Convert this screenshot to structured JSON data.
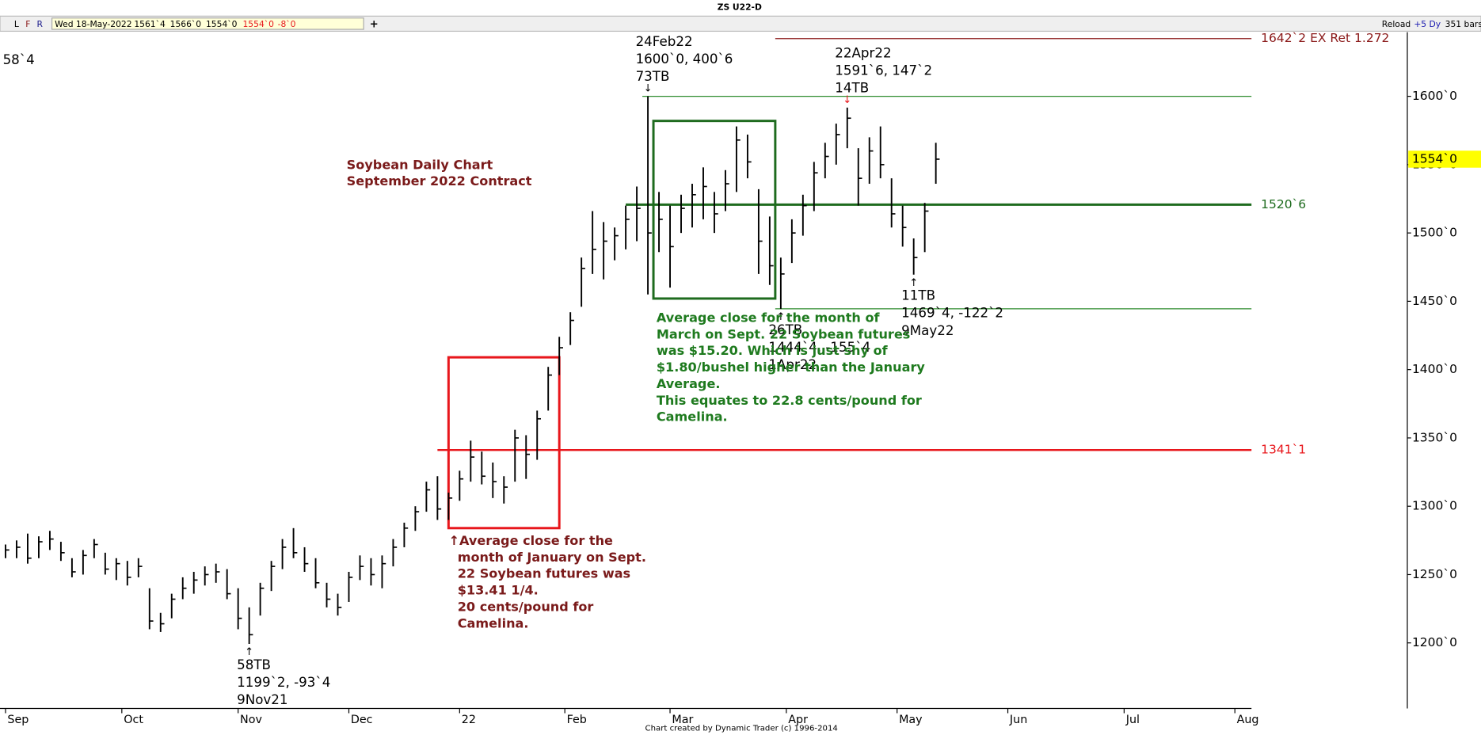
{
  "toolbar": {
    "buttons": [
      "L",
      "F",
      "R"
    ],
    "date": "Wed 18-May-2022",
    "open": "1561`4",
    "high": "1566`0",
    "low": "1554`0",
    "last": "1554`0",
    "change": "-8`0",
    "add": "+",
    "title": "ZS U22-D",
    "reload": "Reload",
    "period": "+5 Dy",
    "bars": "351 bars"
  },
  "corner_label": "58`4",
  "footer": "Chart created by Dynamic Trader  (c) 1996-2014",
  "chart_data": {
    "type": "ohlc",
    "bar_color": "#000000",
    "x": [
      0,
      2,
      4,
      6,
      8,
      10,
      12,
      14,
      16,
      18,
      20,
      22,
      24,
      26,
      28,
      30,
      32,
      34,
      36,
      38,
      40,
      42,
      44,
      46,
      48,
      50,
      52,
      54,
      56,
      58,
      60,
      62,
      64,
      66,
      68,
      70,
      72,
      74,
      76,
      78,
      80,
      82,
      84,
      86,
      88,
      90,
      92,
      94,
      96,
      98,
      100,
      102,
      104,
      106,
      108,
      110,
      112,
      114,
      116,
      118,
      120,
      122,
      124,
      126,
      128,
      130,
      132,
      134,
      136,
      138,
      140,
      142,
      144,
      146,
      148,
      150,
      152,
      154,
      156,
      158,
      160,
      162,
      164,
      166,
      168
    ],
    "high": [
      1272,
      1275,
      1280,
      1278,
      1282,
      1274,
      1262,
      1268,
      1276,
      1266,
      1262,
      1260,
      1262,
      1240,
      1222,
      1236,
      1248,
      1252,
      1256,
      1258,
      1254,
      1240,
      1226,
      1244,
      1260,
      1276,
      1284,
      1270,
      1262,
      1244,
      1236,
      1252,
      1264,
      1262,
      1264,
      1276,
      1288,
      1300,
      1318,
      1322,
      1310,
      1326,
      1348,
      1340,
      1332,
      1322,
      1356,
      1352,
      1370,
      1402,
      1424,
      1442,
      1482,
      1516,
      1508,
      1504,
      1520,
      1534,
      1600,
      1530,
      1520,
      1528,
      1536,
      1548,
      1530,
      1546,
      1578,
      1572,
      1532,
      1512,
      1482,
      1510,
      1528,
      1552,
      1566,
      1580,
      1591.75,
      1562,
      1570,
      1578,
      1540,
      1520,
      1496,
      1522,
      1566
    ],
    "low": [
      1262,
      1262,
      1258,
      1262,
      1268,
      1260,
      1248,
      1250,
      1262,
      1250,
      1246,
      1242,
      1248,
      1210,
      1208,
      1218,
      1232,
      1236,
      1242,
      1244,
      1232,
      1210,
      1199.25,
      1220,
      1238,
      1254,
      1262,
      1252,
      1240,
      1226,
      1220,
      1230,
      1246,
      1242,
      1240,
      1256,
      1270,
      1282,
      1296,
      1290,
      1290,
      1304,
      1318,
      1316,
      1306,
      1302,
      1318,
      1320,
      1334,
      1370,
      1396,
      1418,
      1446,
      1470,
      1466,
      1480,
      1488,
      1494,
      1455,
      1486,
      1460,
      1500,
      1504,
      1510,
      1500,
      1516,
      1530,
      1540,
      1470,
      1462,
      1444.5,
      1478,
      1498,
      1516,
      1540,
      1550,
      1562,
      1520,
      1536,
      1540,
      1504,
      1490,
      1469.5,
      1486,
      1536
    ],
    "close": [
      1268,
      1270,
      1262,
      1274,
      1276,
      1266,
      1252,
      1264,
      1272,
      1254,
      1258,
      1248,
      1256,
      1216,
      1214,
      1232,
      1240,
      1246,
      1250,
      1252,
      1236,
      1218,
      1206,
      1240,
      1256,
      1270,
      1266,
      1258,
      1244,
      1232,
      1226,
      1248,
      1256,
      1250,
      1258,
      1270,
      1284,
      1296,
      1312,
      1298,
      1306,
      1320,
      1336,
      1322,
      1318,
      1314,
      1350,
      1338,
      1364,
      1396,
      1416,
      1436,
      1474,
      1488,
      1494,
      1498,
      1510,
      1518,
      1500,
      1510,
      1490,
      1518,
      1528,
      1534,
      1514,
      1536,
      1568,
      1552,
      1494,
      1476,
      1470,
      1500,
      1520,
      1544,
      1556,
      1572,
      1584,
      1540,
      1560,
      1550,
      1514,
      1504,
      1482,
      1516,
      1554
    ],
    "xlim": [
      -1,
      225
    ],
    "xticks": [
      {
        "value": 0,
        "label": "Sep"
      },
      {
        "value": 21,
        "label": "Oct"
      },
      {
        "value": 42,
        "label": "Nov"
      },
      {
        "value": 62,
        "label": "Dec"
      },
      {
        "value": 82,
        "label": "22"
      },
      {
        "value": 101,
        "label": "Feb"
      },
      {
        "value": 120,
        "label": "Mar"
      },
      {
        "value": 141,
        "label": "Apr"
      },
      {
        "value": 161,
        "label": "May"
      },
      {
        "value": 181,
        "label": "Jun"
      },
      {
        "value": 202,
        "label": "Jul"
      },
      {
        "value": 222,
        "label": "Aug"
      }
    ],
    "ylim": [
      1152,
      1658
    ],
    "yticks": [
      {
        "value": 1200,
        "label": "1200`0"
      },
      {
        "value": 1250,
        "label": "1250`0"
      },
      {
        "value": 1300,
        "label": "1300`0"
      },
      {
        "value": 1350,
        "label": "1350`0"
      },
      {
        "value": 1400,
        "label": "1400`0"
      },
      {
        "value": 1450,
        "label": "1450`0"
      },
      {
        "value": 1500,
        "label": "1500`0"
      },
      {
        "value": 1550,
        "label": "1550`0"
      },
      {
        "value": 1600,
        "label": "1600`0"
      }
    ],
    "last_price": {
      "value": 1554,
      "label": "1554`0"
    },
    "levels": [
      {
        "value": 1642.25,
        "label": "1642`2 EX Ret 1.272",
        "color": "#8b1a1a",
        "from": 139,
        "width": 1
      },
      {
        "value": 1600,
        "label": null,
        "color": "#2e8b2e",
        "from": 115,
        "width": 1
      },
      {
        "value": 1520.75,
        "label": "1520`6",
        "color": "#1e6b1e",
        "from": 112,
        "width": 2.5
      },
      {
        "value": 1444.5,
        "label": null,
        "color": "#2e8b2e",
        "from": 139,
        "width": 1
      },
      {
        "value": 1341.125,
        "label": "1341`1",
        "color": "#e8161b",
        "from": 78,
        "width": 2
      }
    ],
    "boxes": [
      {
        "x": [
          80,
          100
        ],
        "y": [
          1284,
          1409
        ],
        "color": "#e8161b"
      },
      {
        "x": [
          117,
          139
        ],
        "y": [
          1452,
          1582
        ],
        "color": "#1e6b1e"
      }
    ],
    "pivots": [
      {
        "x": 116,
        "value": 1600,
        "position": "above",
        "arrow": "↓",
        "arrow_color": "#000000",
        "lines": [
          "24Feb22",
          "1600`0, 400`6",
          "73TB"
        ]
      },
      {
        "x": 152,
        "value": 1591.75,
        "position": "above",
        "arrow": "↓",
        "arrow_color": "#e8161b",
        "lines": [
          "22Apr22",
          "1591`6, 147`2",
          "14TB"
        ]
      },
      {
        "x": 44,
        "value": 1199.25,
        "position": "below",
        "arrow": "↑",
        "arrow_color": "#000000",
        "lines": [
          "58TB",
          "1199`2, -93`4",
          "9Nov21"
        ]
      },
      {
        "x": 140,
        "value": 1444.5,
        "position": "below",
        "arrow": "↑",
        "arrow_color": "#000000",
        "lines": [
          "26TB",
          "1444`4, -155`4",
          "1Apr22"
        ]
      },
      {
        "x": 164,
        "value": 1469.5,
        "position": "below",
        "arrow": "↑",
        "arrow_color": "#000000",
        "lines": [
          "11TB",
          "1469`4, -122`2",
          "9May22"
        ]
      }
    ],
    "notes": [
      {
        "color": "#7a1a1a",
        "lines": [
          "Soybean Daily Chart",
          "September 2022 Contract"
        ]
      },
      {
        "color": "#1e7a1e",
        "lines": [
          "Average close for the month of",
          "March on Sept. 22 Soybean futures",
          "was $15.20. Which is just shy of",
          "$1.80/bushel higher than the January",
          "Average.",
          "This equates to 22.8 cents/pound for",
          "Camelina."
        ]
      },
      {
        "color": "#7a1a1a",
        "lines": [
          "↑Average close for the",
          "  month of January on Sept.",
          "  22 Soybean futures was",
          "  $13.41 1/4.",
          "  20 cents/pound for",
          "  Camelina."
        ]
      }
    ]
  }
}
